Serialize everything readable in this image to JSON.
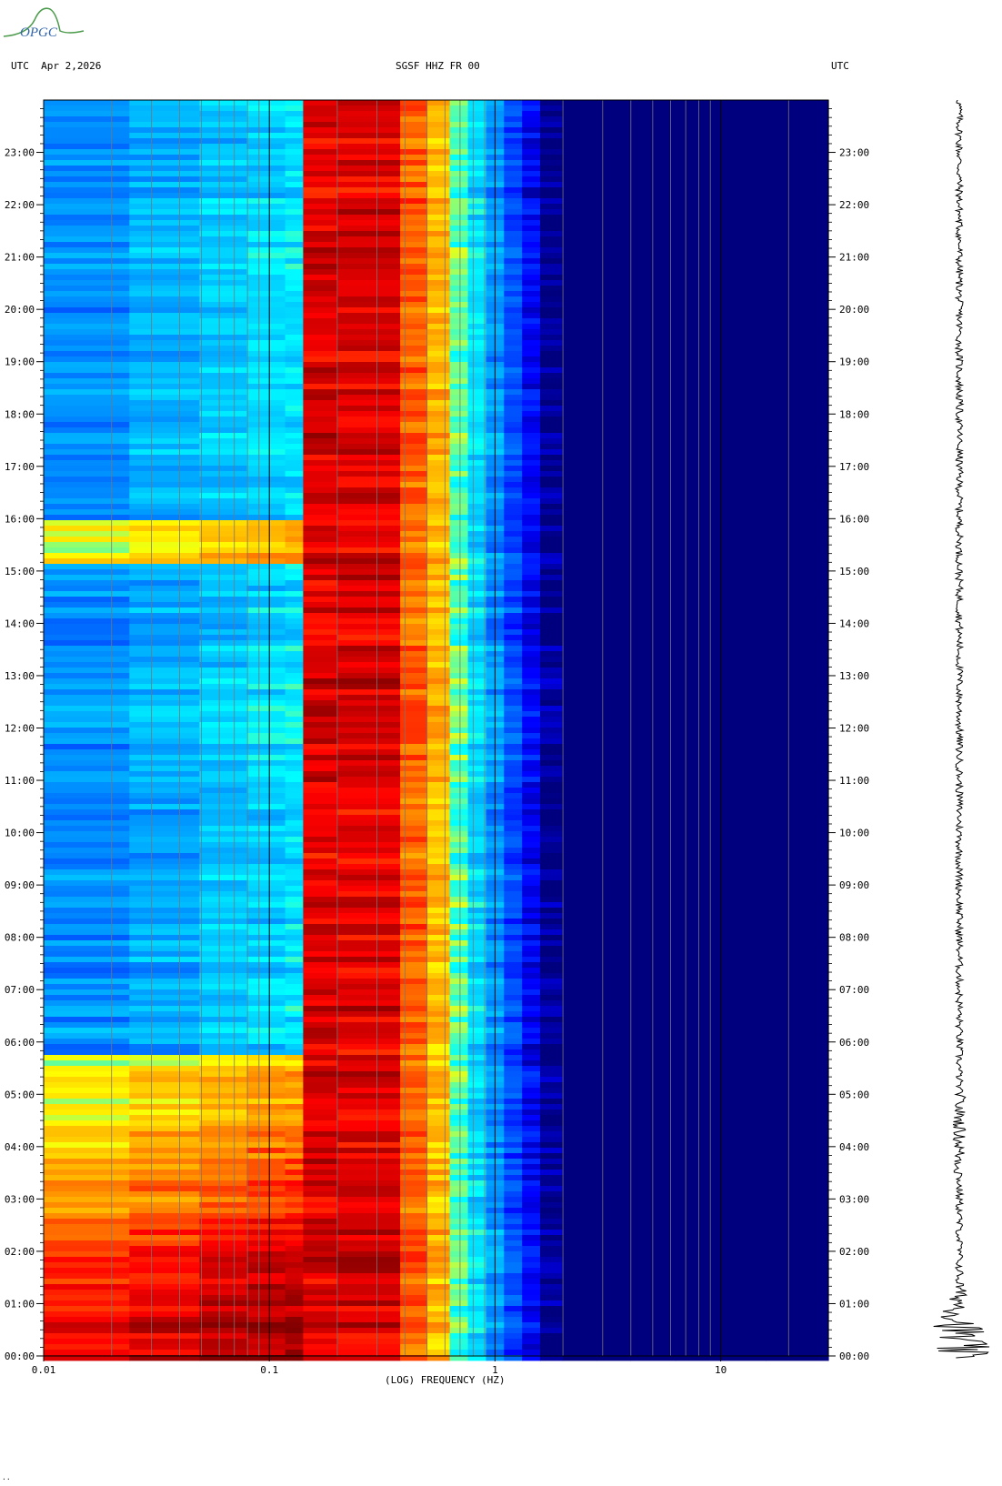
{
  "header": {
    "logo_text": "OPGC",
    "left_label": "UTC  Apr 2,2026",
    "center_label": "SGSF HHZ FR 00",
    "right_label": "UTC"
  },
  "x_axis": {
    "label": "(LOG) FREQUENCY (HZ)",
    "ticks": [
      {
        "value": 0.01,
        "label": "0.01"
      },
      {
        "value": 0.1,
        "label": "0.1"
      },
      {
        "value": 1,
        "label": "1"
      },
      {
        "value": 10,
        "label": "10"
      }
    ],
    "range_hz": [
      0.01,
      30
    ],
    "scale": "log"
  },
  "y_axis": {
    "range_hours": [
      0,
      24
    ],
    "ticks": [
      "00:00",
      "01:00",
      "02:00",
      "03:00",
      "04:00",
      "05:00",
      "06:00",
      "07:00",
      "08:00",
      "09:00",
      "10:00",
      "11:00",
      "12:00",
      "13:00",
      "14:00",
      "15:00",
      "16:00",
      "17:00",
      "18:00",
      "19:00",
      "20:00",
      "21:00",
      "22:00",
      "23:00"
    ]
  },
  "chart_data": {
    "type": "heatmap",
    "title": "SGSF HHZ FR 00",
    "xlabel": "(LOG) FREQUENCY (HZ)",
    "ylabel": "",
    "x_scale": "log",
    "xlim": [
      0.01,
      30
    ],
    "ylim_hours": [
      0,
      24
    ],
    "colormap": [
      "#00007f",
      "#0000ff",
      "#00a0ff",
      "#00ffff",
      "#ffff00",
      "#ff8000",
      "#ff0000",
      "#800000"
    ],
    "grid": true,
    "side_trace": "seismogram"
  },
  "footer_mark": "..",
  "colors": {
    "background": "#ffffff",
    "plot_bg": "#000088",
    "logo": "#4a9a4a",
    "logo_text": "#3366aa"
  }
}
